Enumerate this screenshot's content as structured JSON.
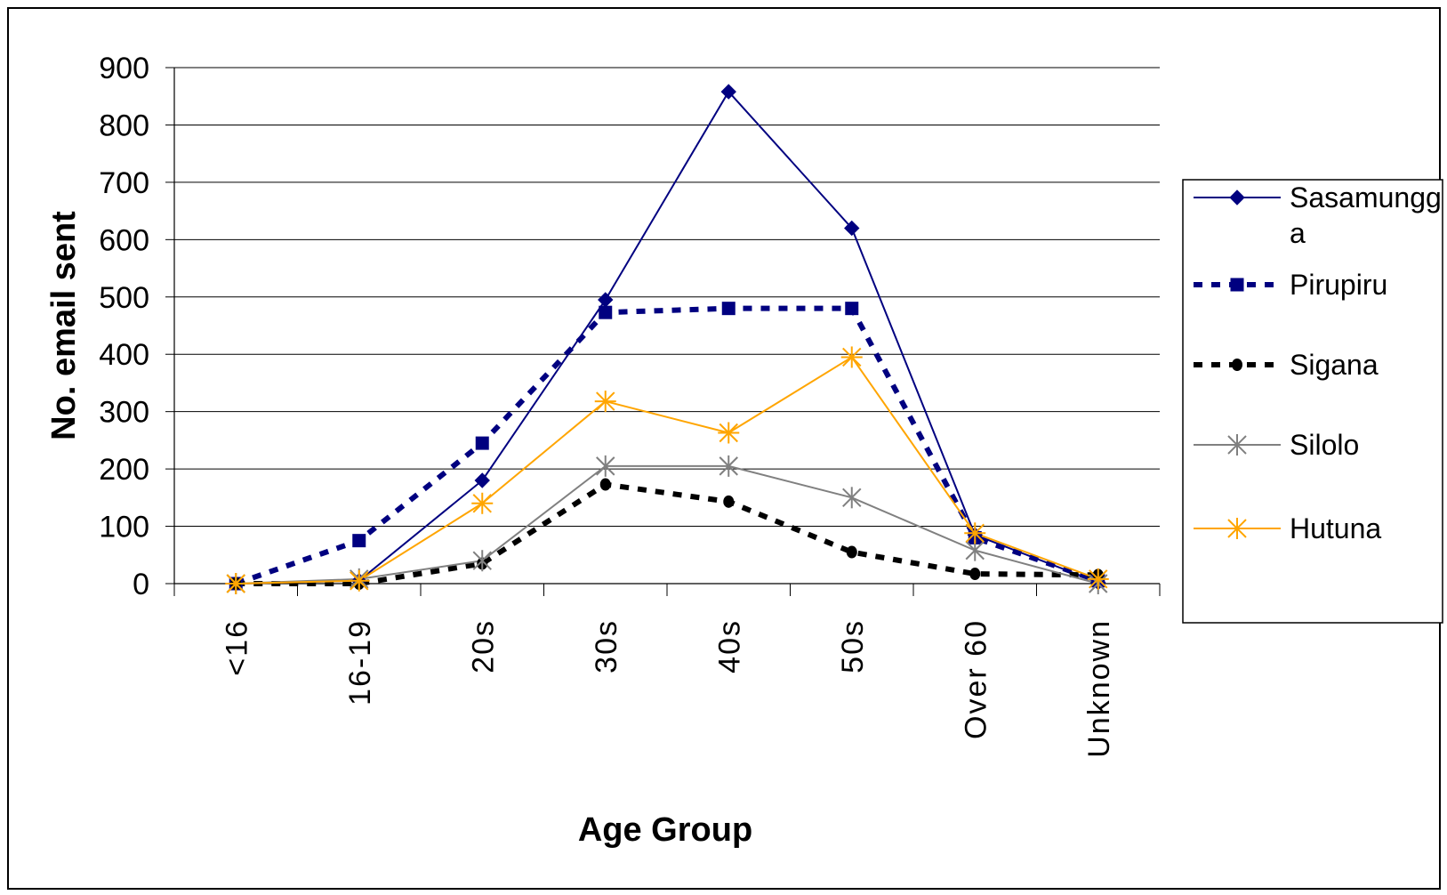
{
  "chart_data": {
    "type": "line",
    "title": "",
    "xlabel": "Age Group",
    "ylabel": "No. email sent",
    "categories": [
      "<16",
      "16-19",
      "20s",
      "30s",
      "40s",
      "50s",
      "Over 60",
      "Unknown"
    ],
    "ylim": [
      0,
      900
    ],
    "yticks": [
      0,
      100,
      200,
      300,
      400,
      500,
      600,
      700,
      800,
      900
    ],
    "grid": true,
    "legend_position": "right",
    "series": [
      {
        "name": "Sasamungga",
        "legend_lines": [
          "Sasamungg",
          "a"
        ],
        "values": [
          0,
          5,
          180,
          495,
          858,
          620,
          85,
          2
        ],
        "color": "#000080",
        "dash": "",
        "width": 2,
        "marker": "diamond"
      },
      {
        "name": "Pirupiru",
        "legend_lines": [
          "Pirupiru"
        ],
        "values": [
          0,
          75,
          245,
          473,
          480,
          480,
          80,
          5
        ],
        "color": "#000080",
        "dash": "10,10",
        "width": 6,
        "marker": "square"
      },
      {
        "name": "Sigana",
        "legend_lines": [
          "Sigana"
        ],
        "values": [
          0,
          0,
          35,
          173,
          143,
          55,
          17,
          15
        ],
        "color": "#000000",
        "dash": "10,10",
        "width": 6,
        "marker": "circle"
      },
      {
        "name": "Silolo",
        "legend_lines": [
          "Silolo"
        ],
        "values": [
          0,
          8,
          40,
          205,
          205,
          150,
          58,
          0
        ],
        "color": "#808080",
        "dash": "",
        "width": 2,
        "marker": "asterisk"
      },
      {
        "name": "Hutuna",
        "legend_lines": [
          "Hutuna"
        ],
        "values": [
          0,
          5,
          140,
          318,
          263,
          395,
          88,
          8
        ],
        "color": "#FFA500",
        "dash": "",
        "width": 2,
        "marker": "star"
      }
    ]
  }
}
